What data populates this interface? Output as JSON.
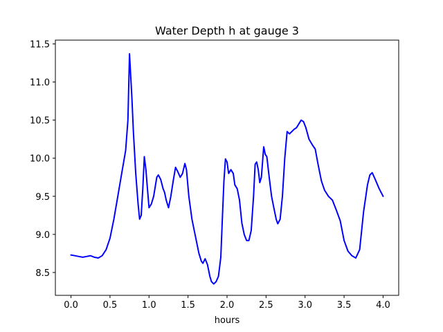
{
  "chart_data": {
    "type": "line",
    "title": "Water Depth h at gauge 3",
    "xlabel": "hours",
    "ylabel": "",
    "xlim": [
      -0.2,
      4.2
    ],
    "ylim": [
      8.2,
      11.55
    ],
    "xticks": [
      0.0,
      0.5,
      1.0,
      1.5,
      2.0,
      2.5,
      3.0,
      3.5,
      4.0
    ],
    "xtick_labels": [
      "0.0",
      "0.5",
      "1.0",
      "1.5",
      "2.0",
      "2.5",
      "3.0",
      "3.5",
      "4.0"
    ],
    "yticks": [
      8.5,
      9.0,
      9.5,
      10.0,
      10.5,
      11.0,
      11.5
    ],
    "ytick_labels": [
      "8.5",
      "9.0",
      "9.5",
      "10.0",
      "10.5",
      "11.0",
      "11.5"
    ],
    "grid": false,
    "series": [
      {
        "color": "#0000ff",
        "x": [
          0.0,
          0.05,
          0.1,
          0.15,
          0.2,
          0.25,
          0.3,
          0.35,
          0.4,
          0.45,
          0.5,
          0.55,
          0.6,
          0.65,
          0.7,
          0.73,
          0.75,
          0.78,
          0.8,
          0.83,
          0.86,
          0.88,
          0.9,
          0.92,
          0.94,
          0.96,
          0.98,
          1.0,
          1.03,
          1.06,
          1.1,
          1.12,
          1.15,
          1.18,
          1.2,
          1.22,
          1.25,
          1.28,
          1.31,
          1.34,
          1.37,
          1.4,
          1.43,
          1.46,
          1.48,
          1.51,
          1.55,
          1.6,
          1.64,
          1.67,
          1.69,
          1.72,
          1.75,
          1.78,
          1.8,
          1.83,
          1.86,
          1.89,
          1.92,
          1.94,
          1.96,
          1.98,
          2.0,
          2.02,
          2.05,
          2.08,
          2.1,
          2.13,
          2.16,
          2.19,
          2.22,
          2.25,
          2.28,
          2.31,
          2.34,
          2.36,
          2.38,
          2.4,
          2.42,
          2.44,
          2.47,
          2.49,
          2.51,
          2.54,
          2.57,
          2.6,
          2.63,
          2.65,
          2.68,
          2.71,
          2.74,
          2.77,
          2.8,
          2.83,
          2.86,
          2.89,
          2.92,
          2.95,
          2.98,
          3.01,
          3.05,
          3.09,
          3.13,
          3.17,
          3.21,
          3.25,
          3.3,
          3.35,
          3.4,
          3.45,
          3.5,
          3.55,
          3.6,
          3.65,
          3.7,
          3.75,
          3.8,
          3.83,
          3.86,
          3.9,
          3.95,
          4.0
        ],
        "y": [
          8.73,
          8.72,
          8.71,
          8.7,
          8.71,
          8.72,
          8.7,
          8.69,
          8.72,
          8.8,
          8.95,
          9.2,
          9.5,
          9.8,
          10.1,
          10.5,
          11.37,
          10.8,
          10.35,
          9.8,
          9.4,
          9.2,
          9.25,
          9.6,
          10.02,
          9.85,
          9.6,
          9.35,
          9.4,
          9.5,
          9.75,
          9.78,
          9.72,
          9.6,
          9.55,
          9.45,
          9.35,
          9.5,
          9.7,
          9.88,
          9.82,
          9.75,
          9.8,
          9.93,
          9.85,
          9.5,
          9.2,
          8.95,
          8.75,
          8.65,
          8.62,
          8.68,
          8.6,
          8.45,
          8.38,
          8.35,
          8.38,
          8.45,
          8.7,
          9.2,
          9.7,
          9.99,
          9.95,
          9.8,
          9.85,
          9.8,
          9.65,
          9.6,
          9.45,
          9.15,
          9.0,
          8.92,
          8.92,
          9.05,
          9.5,
          9.92,
          9.95,
          9.85,
          9.68,
          9.75,
          10.15,
          10.05,
          10.02,
          9.75,
          9.5,
          9.35,
          9.2,
          9.14,
          9.2,
          9.5,
          10.0,
          10.35,
          10.32,
          10.35,
          10.38,
          10.4,
          10.45,
          10.5,
          10.48,
          10.4,
          10.25,
          10.18,
          10.12,
          9.9,
          9.7,
          9.58,
          9.5,
          9.45,
          9.32,
          9.18,
          8.92,
          8.78,
          8.72,
          8.69,
          8.8,
          9.3,
          9.65,
          9.78,
          9.81,
          9.72,
          9.6,
          9.5
        ]
      }
    ]
  }
}
